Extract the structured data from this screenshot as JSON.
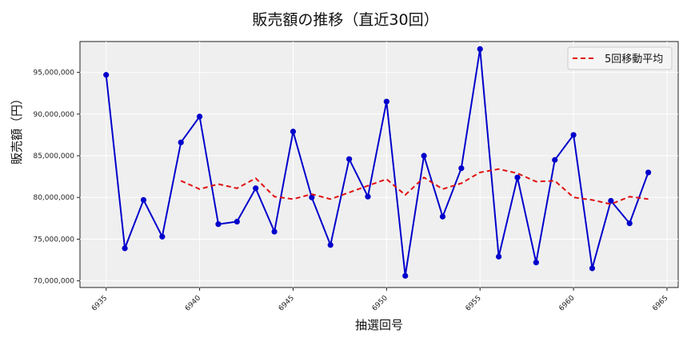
{
  "chart_data": {
    "type": "line",
    "title": "販売額の推移（直近30回）",
    "xlabel": "抽選回号",
    "ylabel": "販売額（円）",
    "x": [
      6935,
      6936,
      6937,
      6938,
      6939,
      6940,
      6941,
      6942,
      6943,
      6944,
      6945,
      6946,
      6947,
      6948,
      6949,
      6950,
      6951,
      6952,
      6953,
      6954,
      6955,
      6956,
      6957,
      6958,
      6959,
      6960,
      6961,
      6962,
      6963,
      6964
    ],
    "series": [
      {
        "name": "販売額",
        "color": "#0000cc",
        "style": "solid-with-markers",
        "values": [
          94700000,
          73900000,
          79700000,
          75300000,
          86600000,
          89700000,
          76800000,
          77100000,
          81100000,
          75900000,
          87900000,
          80000000,
          74300000,
          84600000,
          80100000,
          91500000,
          70600000,
          85000000,
          77700000,
          83500000,
          97800000,
          72900000,
          82400000,
          72200000,
          84500000,
          87500000,
          71500000,
          79600000,
          76900000,
          83000000
        ]
      },
      {
        "name": "5回移動平均",
        "color": "#e01010",
        "style": "dashed",
        "values": [
          null,
          null,
          null,
          null,
          82000000,
          81000000,
          81600000,
          81100000,
          82300000,
          80100000,
          79800000,
          80400000,
          79800000,
          80600000,
          81400000,
          82200000,
          80300000,
          82400000,
          81000000,
          81700000,
          83000000,
          83400000,
          82900000,
          81900000,
          82000000,
          80000000,
          79700000,
          79200000,
          80100000,
          79800000
        ]
      }
    ],
    "xticks": [
      6935,
      6940,
      6945,
      6950,
      6955,
      6960,
      6965
    ],
    "yticks": [
      70000000,
      75000000,
      80000000,
      85000000,
      90000000,
      95000000
    ],
    "ytick_labels": [
      "70,000,000",
      "75,000,000",
      "80,000,000",
      "85,000,000",
      "90,000,000",
      "95,000,000"
    ],
    "xlim": [
      6933.6,
      6965.6
    ],
    "ylim": [
      69200000,
      98700000
    ],
    "grid": true,
    "legend_position": "upper right"
  },
  "legend": {
    "label": "5回移動平均"
  }
}
